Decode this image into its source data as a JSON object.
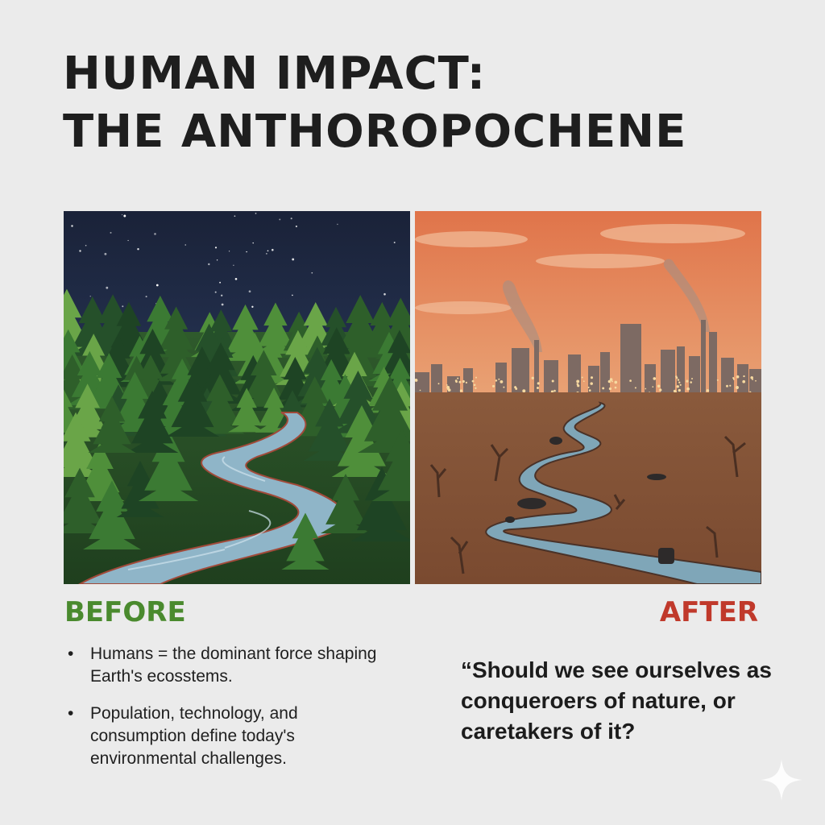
{
  "title": {
    "line1": "HUMAN IMPACT:",
    "line2": "THE ANTHOROPOCHENE"
  },
  "panels": {
    "before": {
      "label": "BEFORE",
      "label_color": "#4a8a2e",
      "image_icon": "forest-river-night-illustration"
    },
    "after": {
      "label": "AFTER",
      "label_color": "#c0392b",
      "image_icon": "polluted-city-wasteland-illustration"
    }
  },
  "bullets": [
    "Humans = the dominant force shaping Earth's ecosstems.",
    "Population, technology, and consumption define today's environmental challenges."
  ],
  "bullet_symbol": "•",
  "quote": "“Should we see ourselves as conqueroers of nature, or caretakers of it?",
  "decor": {
    "corner_icon": "sparkle-icon"
  }
}
